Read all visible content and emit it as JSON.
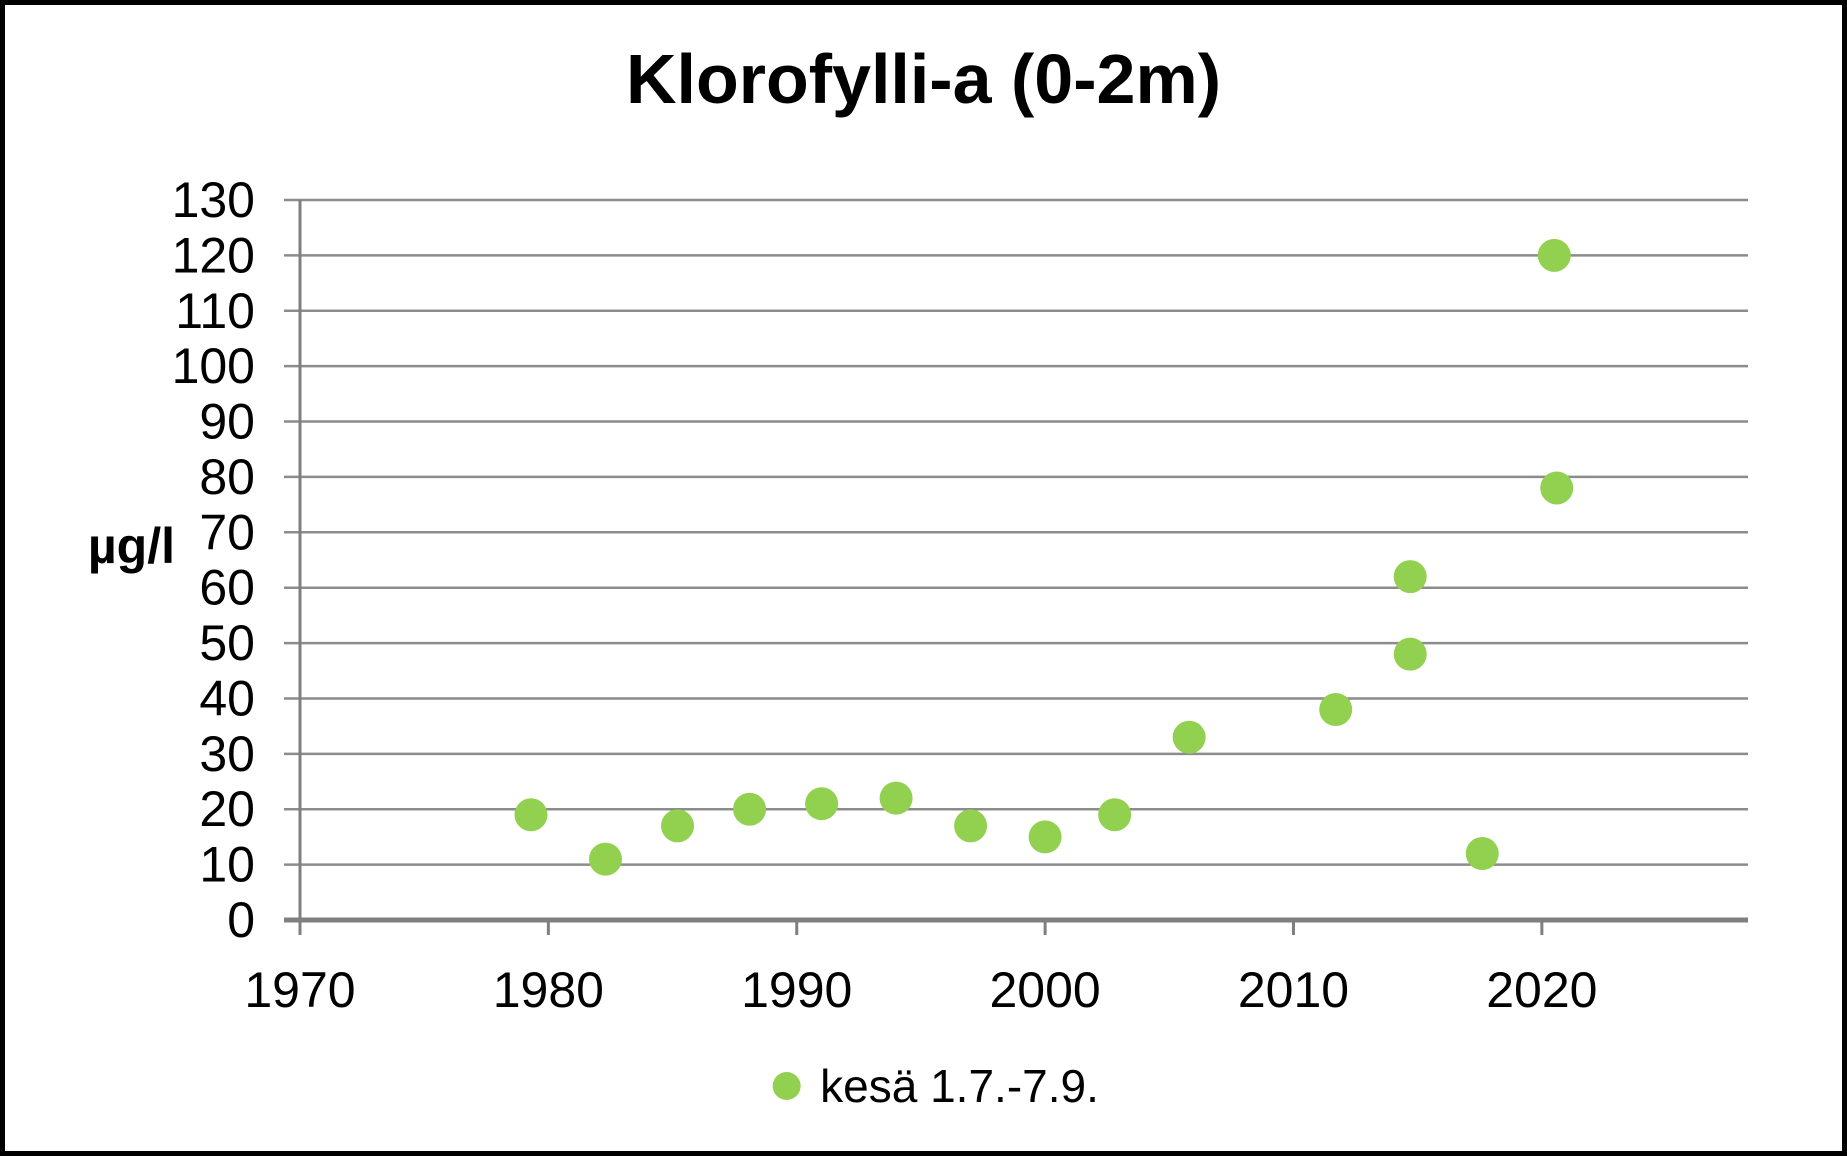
{
  "chart_data": {
    "type": "scatter",
    "title": "Klorofylli-a (0-2m)",
    "ylabel": "µg/l",
    "xlabel": "",
    "xlim": [
      1970,
      2028.3
    ],
    "ylim": [
      0,
      130
    ],
    "x_ticks": [
      1970,
      1980,
      1990,
      2000,
      2010,
      2020
    ],
    "y_ticks": [
      0,
      10,
      20,
      30,
      40,
      50,
      60,
      70,
      80,
      90,
      100,
      110,
      120,
      130
    ],
    "grid": "horizontal-only",
    "legend_position": "bottom-center",
    "colors": {
      "marker": "#92d050",
      "gridline": "#8c8c8c",
      "axis": "#7f7f7f",
      "text": "#000000",
      "background": "#ffffff",
      "frame_border": "#000000"
    },
    "series": [
      {
        "name": "kesä 1.7.-7.9.",
        "color": "#92d050",
        "marker": "circle",
        "points": [
          {
            "x": 1979.3,
            "y": 19
          },
          {
            "x": 1982.3,
            "y": 11
          },
          {
            "x": 1985.2,
            "y": 17
          },
          {
            "x": 1988.1,
            "y": 20
          },
          {
            "x": 1991.0,
            "y": 21
          },
          {
            "x": 1994.0,
            "y": 22
          },
          {
            "x": 1997.0,
            "y": 17
          },
          {
            "x": 2000.0,
            "y": 15
          },
          {
            "x": 2002.8,
            "y": 19
          },
          {
            "x": 2005.8,
            "y": 33
          },
          {
            "x": 2011.7,
            "y": 38
          },
          {
            "x": 2014.7,
            "y": 62
          },
          {
            "x": 2014.7,
            "y": 48
          },
          {
            "x": 2017.6,
            "y": 12
          },
          {
            "x": 2020.5,
            "y": 120
          },
          {
            "x": 2020.6,
            "y": 78
          }
        ]
      }
    ]
  }
}
